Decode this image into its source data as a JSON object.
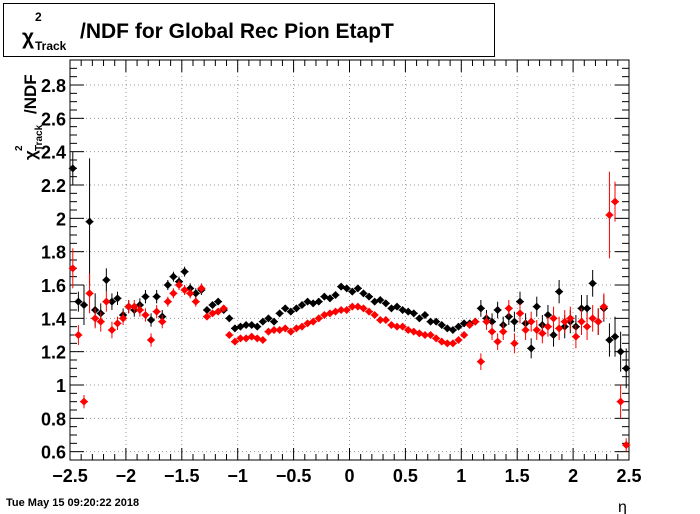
{
  "chart_data": {
    "type": "scatter",
    "title_parts": {
      "chi": "χ",
      "sup": "2",
      "sub": "Track",
      "rest": "/NDF for Global Rec Pion EtapT"
    },
    "xlabel": "η",
    "ylabel_parts": {
      "chi": "χ",
      "sup": "2",
      "sub": "Track",
      "rest": "/NDF"
    },
    "xlim": [
      -2.5,
      2.5
    ],
    "ylim": [
      0.55,
      2.95
    ],
    "xticks": [
      -2.5,
      -2,
      -1.5,
      -1,
      -0.5,
      0,
      0.5,
      1,
      1.5,
      2,
      2.5
    ],
    "xtick_labels": [
      "−2.5",
      "−2",
      "−1.5",
      "−1",
      "−0.5",
      "0",
      "0.5",
      "1",
      "1.5",
      "2",
      "2.5"
    ],
    "yticks": [
      0.6,
      0.8,
      1,
      1.2,
      1.4,
      1.6,
      1.8,
      2,
      2.2,
      2.4,
      2.6,
      2.8
    ],
    "ytick_labels": [
      "0.6",
      "0.8",
      "1",
      "1.2",
      "1.4",
      "1.6",
      "1.8",
      "2",
      "2.2",
      "2.4",
      "2.6",
      "2.8"
    ],
    "grid": true,
    "series": [
      {
        "color": "#000000",
        "points": [
          [
            -2.475,
            2.3,
            0.1
          ],
          [
            -2.425,
            1.5,
            0.06
          ],
          [
            -2.375,
            1.48,
            0.12
          ],
          [
            -2.325,
            1.98,
            0.38
          ],
          [
            -2.275,
            1.45,
            0.1
          ],
          [
            -2.225,
            1.43,
            0.06
          ],
          [
            -2.175,
            1.63,
            0.07
          ],
          [
            -2.125,
            1.5,
            0.05
          ],
          [
            -2.075,
            1.52,
            0.04
          ],
          [
            -2.025,
            1.42,
            0.04
          ],
          [
            -1.975,
            1.47,
            0.04
          ],
          [
            -1.925,
            1.45,
            0.04
          ],
          [
            -1.875,
            1.48,
            0.04
          ],
          [
            -1.825,
            1.53,
            0.04
          ],
          [
            -1.775,
            1.39,
            0.04
          ],
          [
            -1.725,
            1.53,
            0.04
          ],
          [
            -1.675,
            1.41,
            0.04
          ],
          [
            -1.625,
            1.6,
            0.03
          ],
          [
            -1.575,
            1.65,
            0.03
          ],
          [
            -1.525,
            1.62,
            0.03
          ],
          [
            -1.475,
            1.68,
            0.03
          ],
          [
            -1.425,
            1.58,
            0.03
          ],
          [
            -1.375,
            1.55,
            0.03
          ],
          [
            -1.325,
            1.57,
            0.03
          ],
          [
            -1.275,
            1.45,
            0.02
          ],
          [
            -1.225,
            1.48,
            0.02
          ],
          [
            -1.175,
            1.5,
            0.02
          ],
          [
            -1.125,
            1.45,
            0.02
          ],
          [
            -1.075,
            1.4,
            0.02
          ],
          [
            -1.025,
            1.34,
            0.02
          ],
          [
            -0.975,
            1.35,
            0.02
          ],
          [
            -0.925,
            1.36,
            0.02
          ],
          [
            -0.875,
            1.36,
            0.02
          ],
          [
            -0.825,
            1.35,
            0.02
          ],
          [
            -0.775,
            1.38,
            0.02
          ],
          [
            -0.725,
            1.4,
            0.02
          ],
          [
            -0.675,
            1.38,
            0.02
          ],
          [
            -0.625,
            1.43,
            0.02
          ],
          [
            -0.575,
            1.46,
            0.02
          ],
          [
            -0.525,
            1.44,
            0.02
          ],
          [
            -0.475,
            1.46,
            0.02
          ],
          [
            -0.425,
            1.48,
            0.02
          ],
          [
            -0.375,
            1.5,
            0.02
          ],
          [
            -0.325,
            1.49,
            0.02
          ],
          [
            -0.275,
            1.5,
            0.02
          ],
          [
            -0.225,
            1.53,
            0.02
          ],
          [
            -0.175,
            1.52,
            0.02
          ],
          [
            -0.125,
            1.54,
            0.02
          ],
          [
            -0.075,
            1.59,
            0.02
          ],
          [
            -0.025,
            1.58,
            0.02
          ],
          [
            0.025,
            1.56,
            0.02
          ],
          [
            0.075,
            1.58,
            0.02
          ],
          [
            0.125,
            1.55,
            0.02
          ],
          [
            0.175,
            1.53,
            0.02
          ],
          [
            0.225,
            1.5,
            0.02
          ],
          [
            0.275,
            1.51,
            0.02
          ],
          [
            0.325,
            1.49,
            0.02
          ],
          [
            0.375,
            1.46,
            0.02
          ],
          [
            0.425,
            1.47,
            0.02
          ],
          [
            0.475,
            1.45,
            0.02
          ],
          [
            0.525,
            1.44,
            0.02
          ],
          [
            0.575,
            1.43,
            0.02
          ],
          [
            0.625,
            1.4,
            0.02
          ],
          [
            0.675,
            1.42,
            0.02
          ],
          [
            0.725,
            1.38,
            0.02
          ],
          [
            0.775,
            1.38,
            0.02
          ],
          [
            0.825,
            1.36,
            0.02
          ],
          [
            0.875,
            1.34,
            0.02
          ],
          [
            0.925,
            1.33,
            0.02
          ],
          [
            0.975,
            1.35,
            0.02
          ],
          [
            1.025,
            1.37,
            0.02
          ],
          [
            1.075,
            1.37,
            0.02
          ],
          [
            1.125,
            1.38,
            0.02
          ],
          [
            1.175,
            1.46,
            0.05
          ],
          [
            1.225,
            1.4,
            0.05
          ],
          [
            1.275,
            1.38,
            0.05
          ],
          [
            1.325,
            1.45,
            0.05
          ],
          [
            1.375,
            1.36,
            0.05
          ],
          [
            1.425,
            1.41,
            0.05
          ],
          [
            1.475,
            1.38,
            0.06
          ],
          [
            1.525,
            1.5,
            0.06
          ],
          [
            1.575,
            1.37,
            0.06
          ],
          [
            1.625,
            1.22,
            0.06
          ],
          [
            1.675,
            1.47,
            0.06
          ],
          [
            1.725,
            1.36,
            0.06
          ],
          [
            1.775,
            1.42,
            0.06
          ],
          [
            1.825,
            1.3,
            0.07
          ],
          [
            1.875,
            1.56,
            0.07
          ],
          [
            1.925,
            1.35,
            0.07
          ],
          [
            1.975,
            1.38,
            0.07
          ],
          [
            2.025,
            1.35,
            0.07
          ],
          [
            2.075,
            1.46,
            0.08
          ],
          [
            2.125,
            1.46,
            0.08
          ],
          [
            2.175,
            1.61,
            0.08
          ],
          [
            2.225,
            1.38,
            0.08
          ],
          [
            2.275,
            1.46,
            0.08
          ],
          [
            2.325,
            1.27,
            0.1
          ],
          [
            2.375,
            1.29,
            0.12
          ],
          [
            2.425,
            1.2,
            0.12
          ],
          [
            2.475,
            1.1,
            0.12
          ]
        ]
      },
      {
        "color": "#ff0000",
        "points": [
          [
            -2.475,
            1.7,
            0.12
          ],
          [
            -2.425,
            1.3,
            0.06
          ],
          [
            -2.375,
            0.9,
            0.04
          ],
          [
            -2.325,
            1.55,
            0.12
          ],
          [
            -2.275,
            1.4,
            0.06
          ],
          [
            -2.225,
            1.38,
            0.06
          ],
          [
            -2.175,
            1.5,
            0.06
          ],
          [
            -2.125,
            1.33,
            0.05
          ],
          [
            -2.075,
            1.37,
            0.04
          ],
          [
            -2.025,
            1.4,
            0.04
          ],
          [
            -1.975,
            1.47,
            0.04
          ],
          [
            -1.925,
            1.47,
            0.04
          ],
          [
            -1.875,
            1.45,
            0.04
          ],
          [
            -1.825,
            1.42,
            0.04
          ],
          [
            -1.775,
            1.27,
            0.04
          ],
          [
            -1.725,
            1.44,
            0.04
          ],
          [
            -1.675,
            1.38,
            0.04
          ],
          [
            -1.625,
            1.5,
            0.03
          ],
          [
            -1.575,
            1.55,
            0.03
          ],
          [
            -1.525,
            1.6,
            0.03
          ],
          [
            -1.475,
            1.57,
            0.03
          ],
          [
            -1.425,
            1.55,
            0.03
          ],
          [
            -1.375,
            1.5,
            0.03
          ],
          [
            -1.325,
            1.58,
            0.03
          ],
          [
            -1.275,
            1.41,
            0.02
          ],
          [
            -1.225,
            1.43,
            0.02
          ],
          [
            -1.175,
            1.44,
            0.02
          ],
          [
            -1.125,
            1.46,
            0.02
          ],
          [
            -1.075,
            1.3,
            0.02
          ],
          [
            -1.025,
            1.26,
            0.02
          ],
          [
            -0.975,
            1.28,
            0.02
          ],
          [
            -0.925,
            1.28,
            0.02
          ],
          [
            -0.875,
            1.29,
            0.02
          ],
          [
            -0.825,
            1.28,
            0.02
          ],
          [
            -0.775,
            1.27,
            0.02
          ],
          [
            -0.725,
            1.32,
            0.02
          ],
          [
            -0.675,
            1.33,
            0.02
          ],
          [
            -0.625,
            1.33,
            0.02
          ],
          [
            -0.575,
            1.34,
            0.02
          ],
          [
            -0.525,
            1.32,
            0.02
          ],
          [
            -0.475,
            1.34,
            0.02
          ],
          [
            -0.425,
            1.35,
            0.02
          ],
          [
            -0.375,
            1.37,
            0.02
          ],
          [
            -0.325,
            1.38,
            0.02
          ],
          [
            -0.275,
            1.4,
            0.02
          ],
          [
            -0.225,
            1.42,
            0.02
          ],
          [
            -0.175,
            1.43,
            0.02
          ],
          [
            -0.125,
            1.44,
            0.02
          ],
          [
            -0.075,
            1.45,
            0.02
          ],
          [
            -0.025,
            1.45,
            0.02
          ],
          [
            0.025,
            1.47,
            0.02
          ],
          [
            0.075,
            1.47,
            0.02
          ],
          [
            0.125,
            1.46,
            0.02
          ],
          [
            0.175,
            1.44,
            0.02
          ],
          [
            0.225,
            1.42,
            0.02
          ],
          [
            0.275,
            1.39,
            0.02
          ],
          [
            0.325,
            1.39,
            0.02
          ],
          [
            0.375,
            1.36,
            0.02
          ],
          [
            0.425,
            1.35,
            0.02
          ],
          [
            0.475,
            1.35,
            0.02
          ],
          [
            0.525,
            1.33,
            0.02
          ],
          [
            0.575,
            1.32,
            0.02
          ],
          [
            0.625,
            1.31,
            0.02
          ],
          [
            0.675,
            1.3,
            0.02
          ],
          [
            0.725,
            1.3,
            0.02
          ],
          [
            0.775,
            1.28,
            0.02
          ],
          [
            0.825,
            1.26,
            0.02
          ],
          [
            0.875,
            1.25,
            0.02
          ],
          [
            0.925,
            1.25,
            0.02
          ],
          [
            0.975,
            1.27,
            0.02
          ],
          [
            1.025,
            1.3,
            0.02
          ],
          [
            1.075,
            1.36,
            0.02
          ],
          [
            1.125,
            1.38,
            0.02
          ],
          [
            1.175,
            1.14,
            0.05
          ],
          [
            1.225,
            1.38,
            0.05
          ],
          [
            1.275,
            1.32,
            0.05
          ],
          [
            1.325,
            1.26,
            0.05
          ],
          [
            1.375,
            1.32,
            0.05
          ],
          [
            1.425,
            1.46,
            0.05
          ],
          [
            1.475,
            1.25,
            0.06
          ],
          [
            1.525,
            1.43,
            0.06
          ],
          [
            1.575,
            1.33,
            0.06
          ],
          [
            1.625,
            1.38,
            0.06
          ],
          [
            1.675,
            1.33,
            0.06
          ],
          [
            1.725,
            1.31,
            0.06
          ],
          [
            1.775,
            1.35,
            0.06
          ],
          [
            1.825,
            1.4,
            0.07
          ],
          [
            1.875,
            1.34,
            0.07
          ],
          [
            1.925,
            1.38,
            0.07
          ],
          [
            1.975,
            1.4,
            0.07
          ],
          [
            2.025,
            1.29,
            0.07
          ],
          [
            2.075,
            1.38,
            0.08
          ],
          [
            2.125,
            1.35,
            0.08
          ],
          [
            2.175,
            1.4,
            0.08
          ],
          [
            2.225,
            1.38,
            0.08
          ],
          [
            2.275,
            1.47,
            0.08
          ],
          [
            2.325,
            2.02,
            0.26
          ],
          [
            2.375,
            2.1,
            0.12
          ],
          [
            2.425,
            0.9,
            0.1
          ],
          [
            2.475,
            0.64,
            0.04
          ]
        ]
      }
    ]
  },
  "footer": {
    "timestamp": "Tue May 15 09:20:22 2018"
  }
}
